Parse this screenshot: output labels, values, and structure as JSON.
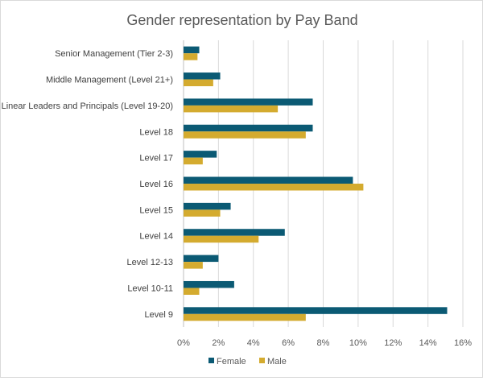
{
  "chart_data": {
    "type": "bar",
    "orientation": "horizontal",
    "title": "Gender representation by Pay Band",
    "xlabel": "",
    "ylabel": "",
    "xlim": [
      0,
      16
    ],
    "x_ticks": [
      0,
      2,
      4,
      6,
      8,
      10,
      12,
      14,
      16
    ],
    "x_tick_labels": [
      "0%",
      "2%",
      "4%",
      "6%",
      "8%",
      "10%",
      "12%",
      "14%",
      "16%"
    ],
    "grid": true,
    "legend_position": "bottom",
    "categories": [
      "Senior Management (Tier 2-3)",
      "Middle Management (Level 21+)",
      "Linear Leaders and Principals (Level 19-20)",
      "Level 18",
      "Level 17",
      "Level 16",
      "Level 15",
      "Level 14",
      "Level 12-13",
      "Level 10-11",
      "Level 9"
    ],
    "series": [
      {
        "name": "Female",
        "color": "#0b5a74",
        "values": [
          0.9,
          2.1,
          7.4,
          7.4,
          1.9,
          9.7,
          2.7,
          5.8,
          2.0,
          2.9,
          15.1
        ]
      },
      {
        "name": "Male",
        "color": "#d4ab2f",
        "values": [
          0.8,
          1.7,
          5.4,
          7.0,
          1.1,
          10.3,
          2.1,
          4.3,
          1.1,
          0.9,
          7.0
        ]
      }
    ]
  }
}
